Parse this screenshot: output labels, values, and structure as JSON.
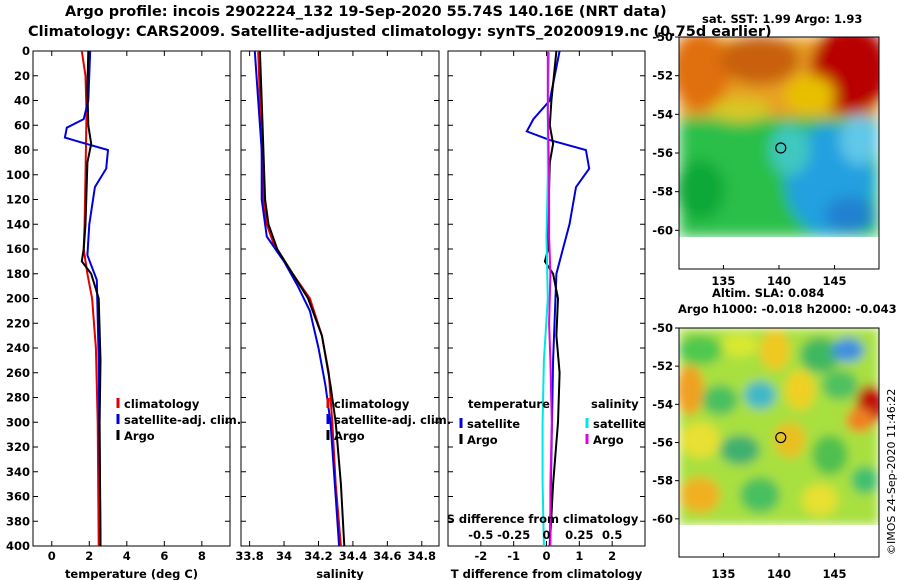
{
  "header": {
    "line1": "Argo profile: incois 2902224_132 19-Sep-2020 55.74S 140.16E (NRT data)",
    "line2": "Climatology: CARS2009. Satellite-adjusted climatology: synTS_20200919.nc (0.75d earlier)"
  },
  "maps": {
    "sst_title": "sat. SST: 1.99 Argo: 1.93",
    "sla_title1": "Altim. SLA: 0.084",
    "sla_title2": "Argo h1000: -0.018 h2000: -0.043",
    "watermark": "©IMOS 24-Sep-2020 11:46:22"
  },
  "colors": {
    "climatology": "#e00000",
    "satellite_adj": "#0000dd",
    "argo": "#000000",
    "sal_satellite": "#00e5e5",
    "sal_argo": "#e000e0"
  },
  "chart_data": [
    {
      "type": "line",
      "id": "temperature",
      "xlabel": "temperature (deg C)",
      "ylabel": "",
      "xlim": [
        -1,
        9.5
      ],
      "ylim": [
        400,
        0
      ],
      "xticks": [
        "0",
        "2",
        "4",
        "6",
        "8"
      ],
      "xtick_values": [
        0,
        2,
        4,
        6,
        8
      ],
      "yticks": [
        "0",
        "20",
        "40",
        "60",
        "80",
        "100",
        "120",
        "140",
        "160",
        "180",
        "200",
        "220",
        "240",
        "260",
        "280",
        "300",
        "320",
        "340",
        "360",
        "380",
        "400"
      ],
      "ytick_values": [
        0,
        20,
        40,
        60,
        80,
        100,
        120,
        140,
        160,
        180,
        200,
        220,
        240,
        260,
        280,
        300,
        320,
        340,
        360,
        380,
        400
      ],
      "legend": [
        "climatology",
        "satellite-adj. clim.",
        "Argo"
      ],
      "series": [
        {
          "name": "climatology",
          "color": "#e00000",
          "points": [
            [
              1.6,
              0
            ],
            [
              1.8,
              20
            ],
            [
              1.85,
              50
            ],
            [
              1.8,
              100
            ],
            [
              1.75,
              140
            ],
            [
              1.7,
              160
            ],
            [
              1.9,
              180
            ],
            [
              2.15,
              200
            ],
            [
              2.35,
              240
            ],
            [
              2.45,
              300
            ],
            [
              2.5,
              400
            ]
          ]
        },
        {
          "name": "satellite-adj. clim.",
          "color": "#0000dd",
          "points": [
            [
              2.05,
              0
            ],
            [
              1.95,
              40
            ],
            [
              1.7,
              55
            ],
            [
              0.8,
              62
            ],
            [
              0.7,
              70
            ],
            [
              1.6,
              74
            ],
            [
              3,
              80
            ],
            [
              2.9,
              95
            ],
            [
              2.3,
              110
            ],
            [
              2,
              140
            ],
            [
              1.9,
              165
            ],
            [
              2.4,
              185
            ],
            [
              2.5,
              250
            ],
            [
              2.6,
              400
            ]
          ]
        },
        {
          "name": "Argo",
          "color": "#000000",
          "points": [
            [
              1.95,
              0
            ],
            [
              1.9,
              30
            ],
            [
              1.95,
              60
            ],
            [
              2.1,
              75
            ],
            [
              1.9,
              90
            ],
            [
              1.8,
              140
            ],
            [
              1.7,
              160
            ],
            [
              1.6,
              170
            ],
            [
              2.1,
              180
            ],
            [
              2.5,
              200
            ],
            [
              2.6,
              250
            ],
            [
              2.55,
              300
            ],
            [
              2.6,
              400
            ]
          ]
        }
      ]
    },
    {
      "type": "line",
      "id": "salinity",
      "xlabel": "salinity",
      "ylabel": "",
      "xlim": [
        33.75,
        34.9
      ],
      "ylim": [
        400,
        0
      ],
      "xticks": [
        "33.8",
        "34",
        "34.2",
        "34.4",
        "34.6",
        "34.8"
      ],
      "xtick_values": [
        33.8,
        34.0,
        34.2,
        34.4,
        34.6,
        34.8
      ],
      "legend": [
        "climatology",
        "satellite-adj. clim.",
        "Argo"
      ],
      "series": [
        {
          "name": "climatology",
          "color": "#e00000",
          "points": [
            [
              33.85,
              0
            ],
            [
              33.86,
              40
            ],
            [
              33.87,
              80
            ],
            [
              33.88,
              120
            ],
            [
              33.9,
              140
            ],
            [
              33.95,
              160
            ],
            [
              34.05,
              180
            ],
            [
              34.15,
              200
            ],
            [
              34.22,
              230
            ],
            [
              34.26,
              260
            ],
            [
              34.28,
              300
            ],
            [
              34.3,
              350
            ],
            [
              34.33,
              400
            ]
          ]
        },
        {
          "name": "satellite-adj. clim.",
          "color": "#0000dd",
          "points": [
            [
              33.83,
              0
            ],
            [
              33.85,
              40
            ],
            [
              33.87,
              80
            ],
            [
              33.87,
              120
            ],
            [
              33.9,
              150
            ],
            [
              34.0,
              170
            ],
            [
              34.08,
              190
            ],
            [
              34.15,
              210
            ],
            [
              34.2,
              240
            ],
            [
              34.24,
              270
            ],
            [
              34.27,
              300
            ],
            [
              34.3,
              360
            ],
            [
              34.32,
              400
            ]
          ]
        },
        {
          "name": "Argo",
          "color": "#000000",
          "points": [
            [
              33.86,
              0
            ],
            [
              33.87,
              40
            ],
            [
              33.88,
              80
            ],
            [
              33.89,
              120
            ],
            [
              33.91,
              140
            ],
            [
              33.96,
              160
            ],
            [
              34.05,
              180
            ],
            [
              34.14,
              200
            ],
            [
              34.22,
              230
            ],
            [
              34.27,
              270
            ],
            [
              34.3,
              300
            ],
            [
              34.33,
              350
            ],
            [
              34.35,
              400
            ]
          ]
        }
      ]
    },
    {
      "type": "line",
      "id": "difference",
      "xlabel": "T difference from climatology",
      "title": "S difference from climatology",
      "ylabel": "",
      "xlim": [
        -3,
        3
      ],
      "ylim": [
        400,
        0
      ],
      "xticks": [
        "-2",
        "-1",
        "0",
        "1",
        "2"
      ],
      "xtick_values": [
        -2,
        -1,
        0,
        1,
        2
      ],
      "s_ticks": [
        "-0.5",
        "-0.25",
        "0",
        "0.25",
        "0.5"
      ],
      "s_tick_values": [
        -0.5,
        -0.25,
        0,
        0.25,
        0.5
      ],
      "slim": [
        -0.75,
        0.75
      ],
      "legend_temperature_title": "temperature",
      "legend_salinity_title": "salinity",
      "legend_temperature": [
        "satellite",
        "Argo"
      ],
      "legend_salinity": [
        "satellite",
        "Argo"
      ],
      "series": [
        {
          "name": "T satellite",
          "axis": "T",
          "color": "#0000dd",
          "points": [
            [
              0.4,
              0
            ],
            [
              0.1,
              40
            ],
            [
              -0.4,
              55
            ],
            [
              -0.6,
              65
            ],
            [
              0.1,
              72
            ],
            [
              1.2,
              80
            ],
            [
              1.3,
              95
            ],
            [
              0.9,
              110
            ],
            [
              0.7,
              140
            ],
            [
              0.5,
              160
            ],
            [
              0.3,
              180
            ],
            [
              0.2,
              250
            ],
            [
              0.1,
              400
            ]
          ]
        },
        {
          "name": "T Argo",
          "axis": "T",
          "color": "#000000",
          "points": [
            [
              0.3,
              0
            ],
            [
              0.15,
              40
            ],
            [
              0.1,
              60
            ],
            [
              0.2,
              75
            ],
            [
              0.1,
              90
            ],
            [
              0.05,
              140
            ],
            [
              0.05,
              160
            ],
            [
              -0.05,
              170
            ],
            [
              0.2,
              180
            ],
            [
              0.35,
              200
            ],
            [
              0.3,
              230
            ],
            [
              0.4,
              260
            ],
            [
              0.35,
              300
            ],
            [
              0.2,
              350
            ],
            [
              0.1,
              400
            ]
          ]
        },
        {
          "name": "S satellite",
          "axis": "S",
          "color": "#00e5e5",
          "points": [
            [
              0.02,
              0
            ],
            [
              0.01,
              50
            ],
            [
              0.01,
              100
            ],
            [
              0.0,
              150
            ],
            [
              0.01,
              200
            ],
            [
              -0.02,
              250
            ],
            [
              -0.03,
              300
            ],
            [
              -0.03,
              350
            ],
            [
              -0.02,
              400
            ]
          ]
        },
        {
          "name": "S Argo",
          "axis": "S",
          "color": "#e000e0",
          "points": [
            [
              0.01,
              0
            ],
            [
              0.01,
              50
            ],
            [
              0.02,
              100
            ],
            [
              0.02,
              150
            ],
            [
              0.03,
              180
            ],
            [
              0.02,
              220
            ],
            [
              0.03,
              250
            ],
            [
              0.04,
              300
            ],
            [
              0.03,
              350
            ],
            [
              0.03,
              400
            ]
          ]
        }
      ]
    },
    {
      "type": "heatmap",
      "id": "sst_map",
      "title": "sat. SST: 1.99 Argo: 1.93",
      "xticks": [
        "135",
        "140",
        "145"
      ],
      "xtick_values": [
        135,
        140,
        145
      ],
      "yticks": [
        "-50",
        "-52",
        "-54",
        "-56",
        "-58",
        "-60"
      ],
      "ytick_values": [
        -50,
        -52,
        -54,
        -56,
        -58,
        -60
      ],
      "xlim": [
        131,
        149
      ],
      "ylim": [
        -62,
        -50
      ],
      "data_ylim": [
        -60,
        -50
      ],
      "marker": [
        140.16,
        -55.74
      ]
    },
    {
      "type": "heatmap",
      "id": "sla_map",
      "title": "Altim. SLA: 0.084",
      "subtitle": "Argo h1000: -0.018 h2000: -0.043",
      "xticks": [
        "135",
        "140",
        "145"
      ],
      "xtick_values": [
        135,
        140,
        145
      ],
      "yticks": [
        "-50",
        "-52",
        "-54",
        "-56",
        "-58",
        "-60"
      ],
      "ytick_values": [
        -50,
        -52,
        -54,
        -56,
        -58,
        -60
      ],
      "xlim": [
        131,
        149
      ],
      "ylim": [
        -62,
        -50
      ],
      "data_ylim": [
        -60,
        -50
      ],
      "marker": [
        140.16,
        -55.74
      ]
    }
  ]
}
